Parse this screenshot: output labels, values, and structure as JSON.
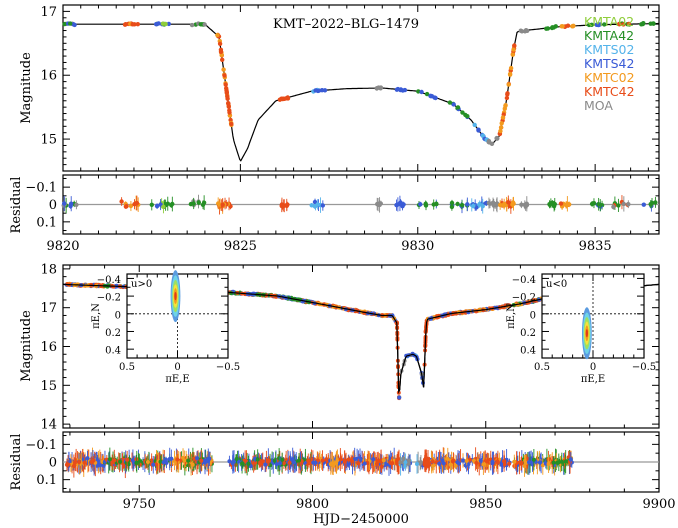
{
  "chart_data": [
    {
      "type": "scatter",
      "panel": "light curve zoom",
      "title": "KMT–2022–BLG–1479",
      "xlabel": "",
      "ylabel": "Magnitude",
      "xlim": [
        9820,
        9836.8
      ],
      "ylim": [
        17.1,
        14.5
      ],
      "y_inverted": true,
      "yticks": [
        15,
        16,
        17
      ],
      "legend_position": "top-right",
      "series": [
        {
          "name": "KMTA02",
          "color": "#8fcd3a"
        },
        {
          "name": "KMTA42",
          "color": "#258f25"
        },
        {
          "name": "KMTS02",
          "color": "#54b3ea"
        },
        {
          "name": "KMTS42",
          "color": "#3a5bd6"
        },
        {
          "name": "KMTC02",
          "color": "#f39a1e"
        },
        {
          "name": "KMTC42",
          "color": "#e84c19"
        },
        {
          "name": "MOA",
          "color": "#8a8a8a"
        }
      ],
      "model": {
        "x": [
          9820,
          9823,
          9824,
          9824.4,
          9824.6,
          9824.8,
          9825,
          9825.2,
          9825.5,
          9826,
          9827,
          9828,
          9829,
          9830,
          9831,
          9831.5,
          9831.9,
          9832.1,
          9832.3,
          9832.5,
          9832.7,
          9832.8,
          9833,
          9834,
          9835,
          9836.8
        ],
        "y": [
          16.8,
          16.8,
          16.8,
          16.6,
          15.8,
          15.0,
          14.65,
          14.85,
          15.3,
          15.6,
          15.75,
          15.79,
          15.8,
          15.75,
          15.55,
          15.3,
          15.0,
          14.92,
          15.05,
          15.6,
          16.4,
          16.68,
          16.7,
          16.76,
          16.79,
          16.81
        ]
      }
    },
    {
      "type": "scatter",
      "panel": "residual zoom",
      "xlabel": "",
      "ylabel": "Residual",
      "xlim": [
        9820,
        9836.8
      ],
      "ylim": [
        -0.17,
        0.17
      ],
      "xticks": [
        9820,
        9825,
        9830,
        9835
      ],
      "yticks": [
        0.1,
        0,
        -0.1
      ]
    },
    {
      "type": "scatter",
      "panel": "light curve full",
      "xlabel": "",
      "ylabel": "Magnitude",
      "xlim": [
        9728,
        9900
      ],
      "ylim": [
        18.1,
        13.9
      ],
      "y_inverted": true,
      "yticks": [
        14,
        15,
        16,
        17,
        18
      ],
      "model": {
        "x": [
          9728,
          9760,
          9790,
          9805,
          9815,
          9820,
          9823,
          9824.4,
          9824.8,
          9825,
          9825.5,
          9827,
          9829,
          9830,
          9831.5,
          9832.1,
          9832.7,
          9833,
          9840,
          9850,
          9860,
          9870,
          9880,
          9900
        ],
        "y": [
          17.6,
          17.5,
          17.3,
          17.05,
          16.88,
          16.8,
          16.8,
          16.6,
          15.0,
          14.65,
          15.3,
          15.75,
          15.8,
          15.75,
          15.3,
          14.92,
          16.4,
          16.7,
          16.85,
          16.95,
          17.1,
          17.3,
          17.45,
          17.6
        ]
      }
    },
    {
      "type": "scatter",
      "panel": "residual full",
      "xlabel": "HJD−2450000",
      "ylabel": "Residual",
      "xlim": [
        9728,
        9900
      ],
      "ylim": [
        -0.17,
        0.17
      ],
      "xticks": [
        9750,
        9800,
        9850,
        9900
      ],
      "yticks": [
        0.1,
        0,
        -0.1
      ]
    },
    {
      "type": "scatter",
      "panel": "parallax inset left",
      "annotation": "u0>0",
      "xlabel": "πE,E",
      "ylabel": "πE,N",
      "xlim": [
        0.5,
        -0.5
      ],
      "ylim": [
        -0.45,
        0.5
      ],
      "xticks": [
        0.5,
        0,
        -0.5
      ],
      "yticks": [
        0.4,
        0.2,
        0,
        -0.2,
        -0.4
      ],
      "center": {
        "x": 0.02,
        "y": -0.2
      }
    },
    {
      "type": "scatter",
      "panel": "parallax inset right",
      "annotation": "u0<0",
      "xlabel": "πE,E",
      "ylabel": "πE,N",
      "xlim": [
        0.5,
        -0.5
      ],
      "ylim": [
        -0.45,
        0.5
      ],
      "xticks": [
        0.5,
        0,
        -0.5
      ],
      "yticks": [
        0.4,
        0.2,
        0,
        -0.2,
        -0.4
      ],
      "center": {
        "x": 0.06,
        "y": 0.22
      }
    }
  ]
}
